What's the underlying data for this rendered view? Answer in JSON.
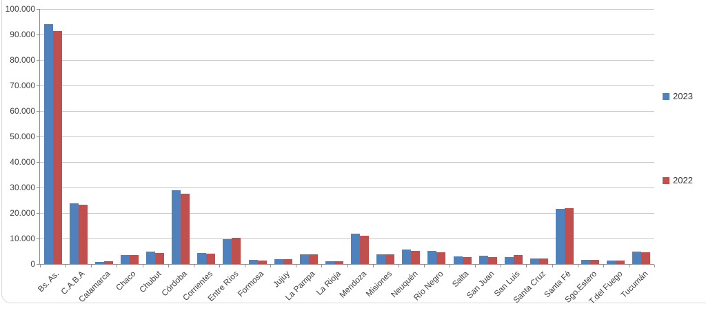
{
  "chart_data": {
    "type": "bar",
    "title": "",
    "xlabel": "",
    "ylabel": "",
    "categories": [
      "Bs. As.",
      "C.A.B.A",
      "Catamarca",
      "Chaco",
      "Chubut",
      "Córdoba",
      "Corrientes",
      "Entre Ríos",
      "Formosa",
      "Jujuy",
      "La Pampa",
      "La Rioja",
      "Mendoza",
      "Misiones",
      "Neuquén",
      "Río Negro",
      "Salta",
      "San Juan",
      "San Luis",
      "Santa Cruz",
      "Santa Fé",
      "Sgo.Estero",
      "T.del Fuego",
      "Tucumán"
    ],
    "series": [
      {
        "name": "2023",
        "color": "#4F81BD",
        "values": [
          94000,
          23700,
          800,
          3400,
          4900,
          29000,
          4200,
          9800,
          1500,
          1900,
          3700,
          1100,
          12000,
          3900,
          5700,
          5100,
          2900,
          3300,
          2800,
          2100,
          21500,
          1500,
          1400,
          4800
        ]
      },
      {
        "name": "2022",
        "color": "#C0504D",
        "values": [
          91400,
          23300,
          1100,
          3400,
          4400,
          27500,
          4100,
          10200,
          1400,
          2000,
          3800,
          1000,
          11200,
          3900,
          5200,
          4700,
          2600,
          2800,
          3600,
          2200,
          21900,
          1700,
          1300,
          4700
        ]
      }
    ],
    "ylim": [
      0,
      100000
    ],
    "y_tick_interval": 10000,
    "y_tick_labels": [
      "0",
      "10.000",
      "20.000",
      "30.000",
      "40.000",
      "50.000",
      "60.000",
      "70.000",
      "80.000",
      "90.000",
      "100.000"
    ],
    "grid": "horizontal-major",
    "legend_position": "right",
    "axis_colors": {
      "line": "#8e8e8e",
      "grid": "#c6c6c6",
      "text": "#404040"
    }
  }
}
